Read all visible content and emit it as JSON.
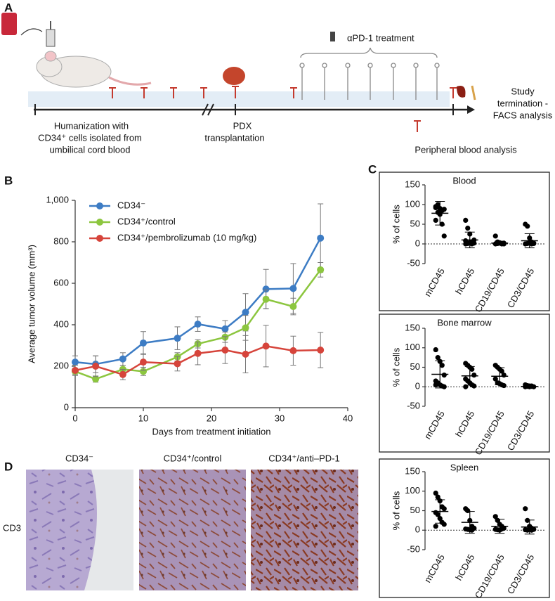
{
  "panel_labels": [
    "A",
    "B",
    "C",
    "D"
  ],
  "schematic": {
    "treatment": "αPD-1 treatment",
    "humanization": [
      "Humanization with",
      "CD34⁺ cells isolated from",
      "umbilical cord blood"
    ],
    "pdx": [
      "PDX",
      "transplantation"
    ],
    "termination": [
      "Study",
      "termination -",
      "FACS analysis"
    ],
    "blood_analysis": "Peripheral blood analysis"
  },
  "chart_data": [
    {
      "type": "line",
      "xlabel": "Days from treatment initiation",
      "ylabel": "Average tumor volume (mm³)",
      "x": [
        0,
        3,
        7,
        10,
        15,
        18,
        22,
        25,
        28,
        32,
        36
      ],
      "xlim": [
        0,
        40
      ],
      "xticks": [
        0,
        10,
        20,
        30,
        40
      ],
      "ylim": [
        0,
        1000
      ],
      "yticks": [
        0,
        200,
        400,
        600,
        800,
        {
          "value": 1000,
          "label": "1,000"
        }
      ],
      "series": [
        {
          "name": "CD34⁻",
          "color": "#3d7cc4",
          "values": [
            220,
            210,
            235,
            312,
            335,
            403,
            380,
            460,
            572,
            575,
            818
          ],
          "errors": [
            30,
            40,
            30,
            55,
            55,
            35,
            40,
            90,
            95,
            120,
            165
          ]
        },
        {
          "name": "CD34⁺/control",
          "color": "#8cc63f",
          "values": [
            175,
            138,
            185,
            175,
            245,
            308,
            340,
            385,
            523,
            488,
            665
          ],
          "errors": [
            15,
            15,
            20,
            20,
            20,
            20,
            25,
            60,
            45,
            40,
            35
          ]
        },
        {
          "name": "CD34⁺/pembrolizumab (10 mg/kg)",
          "color": "#d6443b",
          "values": [
            180,
            200,
            160,
            220,
            212,
            262,
            278,
            258,
            297,
            275,
            278
          ],
          "errors": [
            25,
            50,
            25,
            40,
            35,
            55,
            65,
            90,
            100,
            70,
            85
          ]
        }
      ]
    },
    {
      "type": "dot",
      "title": "Blood",
      "ylabel": "% of cells",
      "categories": [
        "mCD45",
        "hCD45",
        "CD19/CD45",
        "CD3/CD45"
      ],
      "ylim": [
        -50,
        150
      ],
      "yticks": [
        -50,
        0,
        50,
        100,
        150
      ],
      "color": "#000000",
      "points": [
        [
          95,
          100,
          90,
          85,
          88,
          92,
          80,
          75,
          50,
          20,
          60,
          98
        ],
        [
          60,
          40,
          25,
          5,
          2,
          0,
          1,
          3,
          0,
          10,
          8,
          2
        ],
        [
          20,
          5,
          2,
          1,
          0,
          0,
          1,
          3,
          0,
          2
        ],
        [
          50,
          45,
          15,
          5,
          2,
          0,
          1,
          3,
          0,
          1
        ]
      ],
      "means": [
        78,
        10,
        2,
        8
      ],
      "sds": [
        30,
        20,
        5,
        18
      ]
    },
    {
      "type": "dot",
      "title": "Bone marrow",
      "ylabel": "% of cells",
      "categories": [
        "mCD45",
        "hCD45",
        "CD19/CD45",
        "CD3/CD45"
      ],
      "ylim": [
        -50,
        150
      ],
      "yticks": [
        -50,
        0,
        50,
        100,
        150
      ],
      "color": "#000000",
      "points": [
        [
          95,
          75,
          65,
          55,
          30,
          15,
          10,
          5,
          2,
          0,
          5
        ],
        [
          60,
          55,
          50,
          45,
          30,
          20,
          15,
          10,
          5,
          2,
          0
        ],
        [
          55,
          50,
          45,
          40,
          30,
          20,
          10,
          8,
          5,
          3
        ],
        [
          5,
          3,
          2,
          1,
          0,
          0,
          1,
          0,
          2
        ]
      ],
      "means": [
        32,
        28,
        27,
        1
      ],
      "sds": [
        35,
        24,
        22,
        2
      ]
    },
    {
      "type": "dot",
      "title": "Spleen",
      "ylabel": "% of cells",
      "categories": [
        "mCD45",
        "hCD45",
        "CD19/CD45",
        "CD3/CD45"
      ],
      "ylim": [
        -50,
        150
      ],
      "yticks": [
        -50,
        0,
        50,
        100,
        150
      ],
      "color": "#000000",
      "points": [
        [
          95,
          85,
          75,
          60,
          55,
          45,
          40,
          30,
          20,
          15,
          10
        ],
        [
          55,
          50,
          25,
          10,
          5,
          3,
          2,
          1,
          0,
          5
        ],
        [
          35,
          25,
          15,
          10,
          5,
          2,
          1,
          0,
          3
        ],
        [
          55,
          25,
          10,
          5,
          2,
          1,
          0,
          3,
          0
        ]
      ],
      "means": [
        48,
        20,
        10,
        8
      ],
      "sds": [
        30,
        28,
        18,
        18
      ]
    }
  ],
  "histology": {
    "row_label": "CD3",
    "columns": [
      "CD34⁻",
      "CD34⁺/control",
      "CD34⁺/anti–PD-1"
    ]
  }
}
